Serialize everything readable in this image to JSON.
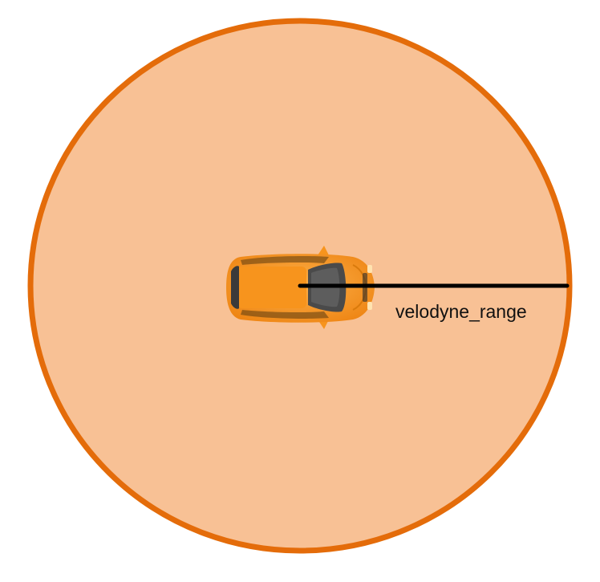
{
  "range_label": "velodyne_range",
  "colors": {
    "range_fill": "#f8c195",
    "range_border": "#e46c0a",
    "car_body": "#f7941d",
    "car_body_shadow": "#e07e10",
    "car_glass": "#4a4a4a",
    "car_glass_dark": "#2b2b2b",
    "radius_line": "#000000"
  },
  "icons": {
    "vehicle": "car-top-view-icon"
  }
}
